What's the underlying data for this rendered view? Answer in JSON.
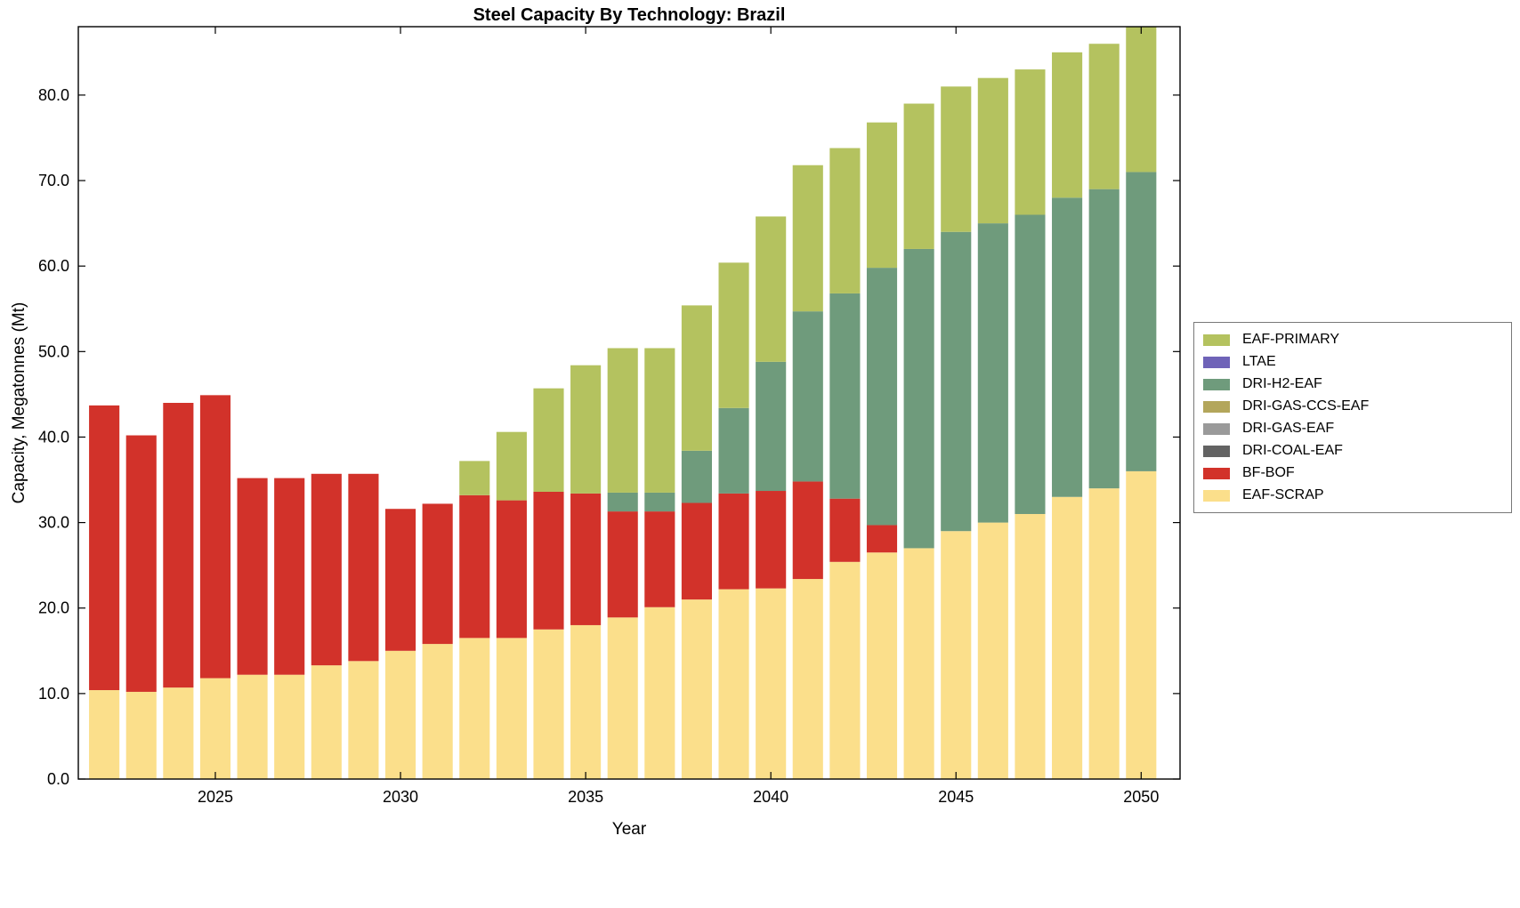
{
  "title": "Steel Capacity By Technology: Brazil",
  "xlabel": "Year",
  "ylabel": "Capacity, Megatonnes (Mt)",
  "chart_data": {
    "type": "bar",
    "stacked": true,
    "title": "Steel Capacity By Technology: Brazil",
    "xlabel": "Year",
    "ylabel": "Capacity, Megatonnes (Mt)",
    "ylim": [
      0,
      88
    ],
    "y_ticks": [
      0,
      10,
      20,
      30,
      40,
      50,
      60,
      70,
      80
    ],
    "y_tick_format_decimals": 1,
    "x_ticks": [
      2025,
      2030,
      2035,
      2040,
      2045,
      2050
    ],
    "legend_position": "right-outside",
    "grid": false,
    "x": [
      2022,
      2023,
      2024,
      2025,
      2026,
      2027,
      2028,
      2029,
      2030,
      2031,
      2032,
      2033,
      2034,
      2035,
      2036,
      2037,
      2038,
      2039,
      2040,
      2041,
      2042,
      2043,
      2044,
      2045,
      2046,
      2047,
      2048,
      2049,
      2050
    ],
    "series": [
      {
        "name": "EAF-SCRAP",
        "color": "#fbdf8b",
        "values": [
          10.4,
          10.2,
          10.7,
          11.8,
          12.2,
          12.2,
          13.3,
          13.8,
          15.0,
          15.8,
          16.5,
          16.5,
          17.5,
          18.0,
          18.9,
          20.1,
          21.0,
          22.2,
          22.3,
          23.4,
          25.4,
          26.5,
          27.0,
          29.0,
          30.0,
          31.0,
          33.0,
          34.0,
          36.0
        ]
      },
      {
        "name": "BF-BOF",
        "color": "#d2322a",
        "values": [
          33.3,
          30.0,
          33.3,
          33.1,
          23.0,
          23.0,
          22.4,
          21.9,
          16.6,
          16.4,
          16.7,
          16.1,
          16.1,
          15.4,
          12.4,
          11.2,
          11.3,
          11.2,
          11.4,
          11.4,
          7.4,
          3.2,
          0,
          0,
          0,
          0,
          0,
          0,
          0
        ]
      },
      {
        "name": "DRI-COAL-EAF",
        "color": "#636363",
        "values": [
          0,
          0,
          0,
          0,
          0,
          0,
          0,
          0,
          0,
          0,
          0,
          0,
          0,
          0,
          0,
          0,
          0,
          0,
          0,
          0,
          0,
          0,
          0,
          0,
          0,
          0,
          0,
          0,
          0
        ]
      },
      {
        "name": "DRI-GAS-EAF",
        "color": "#9a9a9a",
        "values": [
          0,
          0,
          0,
          0,
          0,
          0,
          0,
          0,
          0,
          0,
          0,
          0,
          0,
          0,
          0,
          0,
          0,
          0,
          0,
          0,
          0,
          0,
          0,
          0,
          0,
          0,
          0,
          0,
          0
        ]
      },
      {
        "name": "DRI-GAS-CCS-EAF",
        "color": "#b3a65b",
        "values": [
          0,
          0,
          0,
          0,
          0,
          0,
          0,
          0,
          0,
          0,
          0,
          0,
          0,
          0,
          0,
          0,
          0,
          0,
          0,
          0,
          0,
          0,
          0,
          0,
          0,
          0,
          0,
          0,
          0
        ]
      },
      {
        "name": "DRI-H2-EAF",
        "color": "#6f9b7c",
        "values": [
          0,
          0,
          0,
          0,
          0,
          0,
          0,
          0,
          0,
          0,
          0,
          0,
          0,
          0,
          2.2,
          2.2,
          6.1,
          10.0,
          15.1,
          19.9,
          24.0,
          30.1,
          35.0,
          35.0,
          35.0,
          35.0,
          35.0,
          35.0,
          35.0
        ]
      },
      {
        "name": "LTAE",
        "color": "#6f63b8",
        "values": [
          0,
          0,
          0,
          0,
          0,
          0,
          0,
          0,
          0,
          0,
          0,
          0,
          0,
          0,
          0,
          0,
          0,
          0,
          0,
          0,
          0,
          0,
          0,
          0,
          0,
          0,
          0,
          0,
          0
        ]
      },
      {
        "name": "EAF-PRIMARY",
        "color": "#b4c25f",
        "values": [
          0,
          0,
          0,
          0,
          0,
          0,
          0,
          0,
          0,
          0,
          4.0,
          8.0,
          12.1,
          15.0,
          16.9,
          16.9,
          17.0,
          17.0,
          17.0,
          17.1,
          17.0,
          17.0,
          17.0,
          17.0,
          17.0,
          17.0,
          17.0,
          17.0,
          17.0
        ]
      }
    ],
    "legend_order_top_to_bottom": [
      "EAF-PRIMARY",
      "LTAE",
      "DRI-H2-EAF",
      "DRI-GAS-CCS-EAF",
      "DRI-GAS-EAF",
      "DRI-COAL-EAF",
      "BF-BOF",
      "EAF-SCRAP"
    ]
  }
}
